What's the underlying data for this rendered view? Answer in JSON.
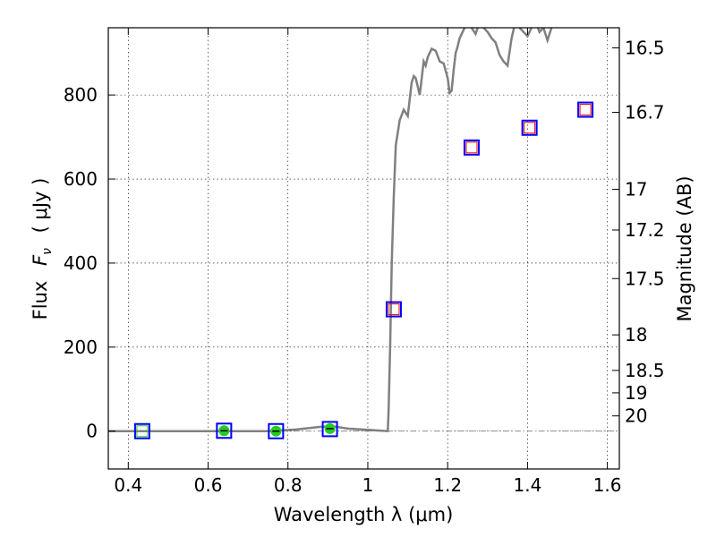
{
  "chart_data": {
    "type": "scatter",
    "xlabel": "Wavelength  λ (μm)",
    "ylabel_text": "Flux",
    "ylabel_symbol": "F",
    "ylabel_subscript": "ν",
    "ylabel_unit": "(  μJy  )",
    "y2label": "Magnitude (AB)",
    "xlim": [
      0.35,
      1.63
    ],
    "ylim": [
      -90,
      960
    ],
    "grid": true,
    "x_ticks": [
      {
        "v": 0.4,
        "label": "0.4"
      },
      {
        "v": 0.6,
        "label": "0.6"
      },
      {
        "v": 0.8,
        "label": "0.8"
      },
      {
        "v": 1.0,
        "label": "1"
      },
      {
        "v": 1.2,
        "label": "1.2"
      },
      {
        "v": 1.4,
        "label": "1.4"
      },
      {
        "v": 1.6,
        "label": "1.6"
      }
    ],
    "y_ticks": [
      {
        "v": 0,
        "label": "0"
      },
      {
        "v": 200,
        "label": "200"
      },
      {
        "v": 400,
        "label": "400"
      },
      {
        "v": 600,
        "label": "600"
      },
      {
        "v": 800,
        "label": "800"
      }
    ],
    "mag_ticks": [
      {
        "label": "16.5",
        "mag": 16.5
      },
      {
        "label": "16.7",
        "mag": 16.7
      },
      {
        "label": "17",
        "mag": 17.0
      },
      {
        "label": "17.2",
        "mag": 17.2
      },
      {
        "label": "17.5",
        "mag": 17.5
      },
      {
        "label": "18",
        "mag": 18.0
      },
      {
        "label": "18.5",
        "mag": 18.5
      },
      {
        "label": "19",
        "mag": 19.0
      },
      {
        "label": "20",
        "mag": 20.0
      }
    ],
    "model_spectrum": {
      "color": "#808080",
      "x": [
        0.35,
        0.45,
        0.55,
        0.65,
        0.75,
        0.82,
        0.88,
        0.91,
        0.95,
        1.0,
        1.05,
        1.052,
        1.056,
        1.06,
        1.065,
        1.07,
        1.08,
        1.09,
        1.1,
        1.11,
        1.115,
        1.12,
        1.13,
        1.14,
        1.145,
        1.15,
        1.16,
        1.17,
        1.18,
        1.19,
        1.2,
        1.205,
        1.21,
        1.215,
        1.22,
        1.225,
        1.23,
        1.24,
        1.25,
        1.26,
        1.27,
        1.28,
        1.29,
        1.3,
        1.31,
        1.32,
        1.33,
        1.34,
        1.35,
        1.36,
        1.37,
        1.38,
        1.39,
        1.4,
        1.41,
        1.42,
        1.43,
        1.44,
        1.45,
        1.46
      ],
      "y": [
        0,
        0,
        0,
        0,
        0,
        4,
        10,
        12,
        6,
        3,
        0,
        50,
        200,
        400,
        560,
        680,
        740,
        765,
        750,
        830,
        845,
        840,
        800,
        880,
        870,
        890,
        910,
        905,
        880,
        875,
        840,
        805,
        810,
        860,
        900,
        915,
        935,
        955,
        975,
        960,
        945,
        975,
        960,
        950,
        935,
        925,
        895,
        880,
        870,
        935,
        975,
        960,
        950,
        940,
        960,
        975,
        950,
        960,
        930,
        960
      ]
    },
    "series": [
      {
        "marker": "open-square",
        "color": "#0000ff",
        "points": [
          [
            0.435,
            0
          ],
          [
            0.64,
            1
          ],
          [
            0.77,
            0
          ],
          [
            0.905,
            5
          ],
          [
            1.065,
            290
          ],
          [
            1.26,
            675
          ],
          [
            1.405,
            722
          ],
          [
            1.545,
            765
          ]
        ]
      },
      {
        "marker": "open-square-small",
        "color": "#ff0000",
        "points": [
          [
            1.065,
            290
          ],
          [
            1.26,
            675
          ],
          [
            1.405,
            722
          ],
          [
            1.545,
            765
          ]
        ]
      },
      {
        "marker": "filled-circle",
        "color": "#22cc22",
        "points": [
          [
            0.64,
            1
          ],
          [
            0.77,
            0
          ],
          [
            0.905,
            6
          ]
        ]
      },
      {
        "marker": "open-square-small",
        "color": "#22cc22",
        "points": [
          [
            0.435,
            0
          ]
        ]
      }
    ]
  }
}
